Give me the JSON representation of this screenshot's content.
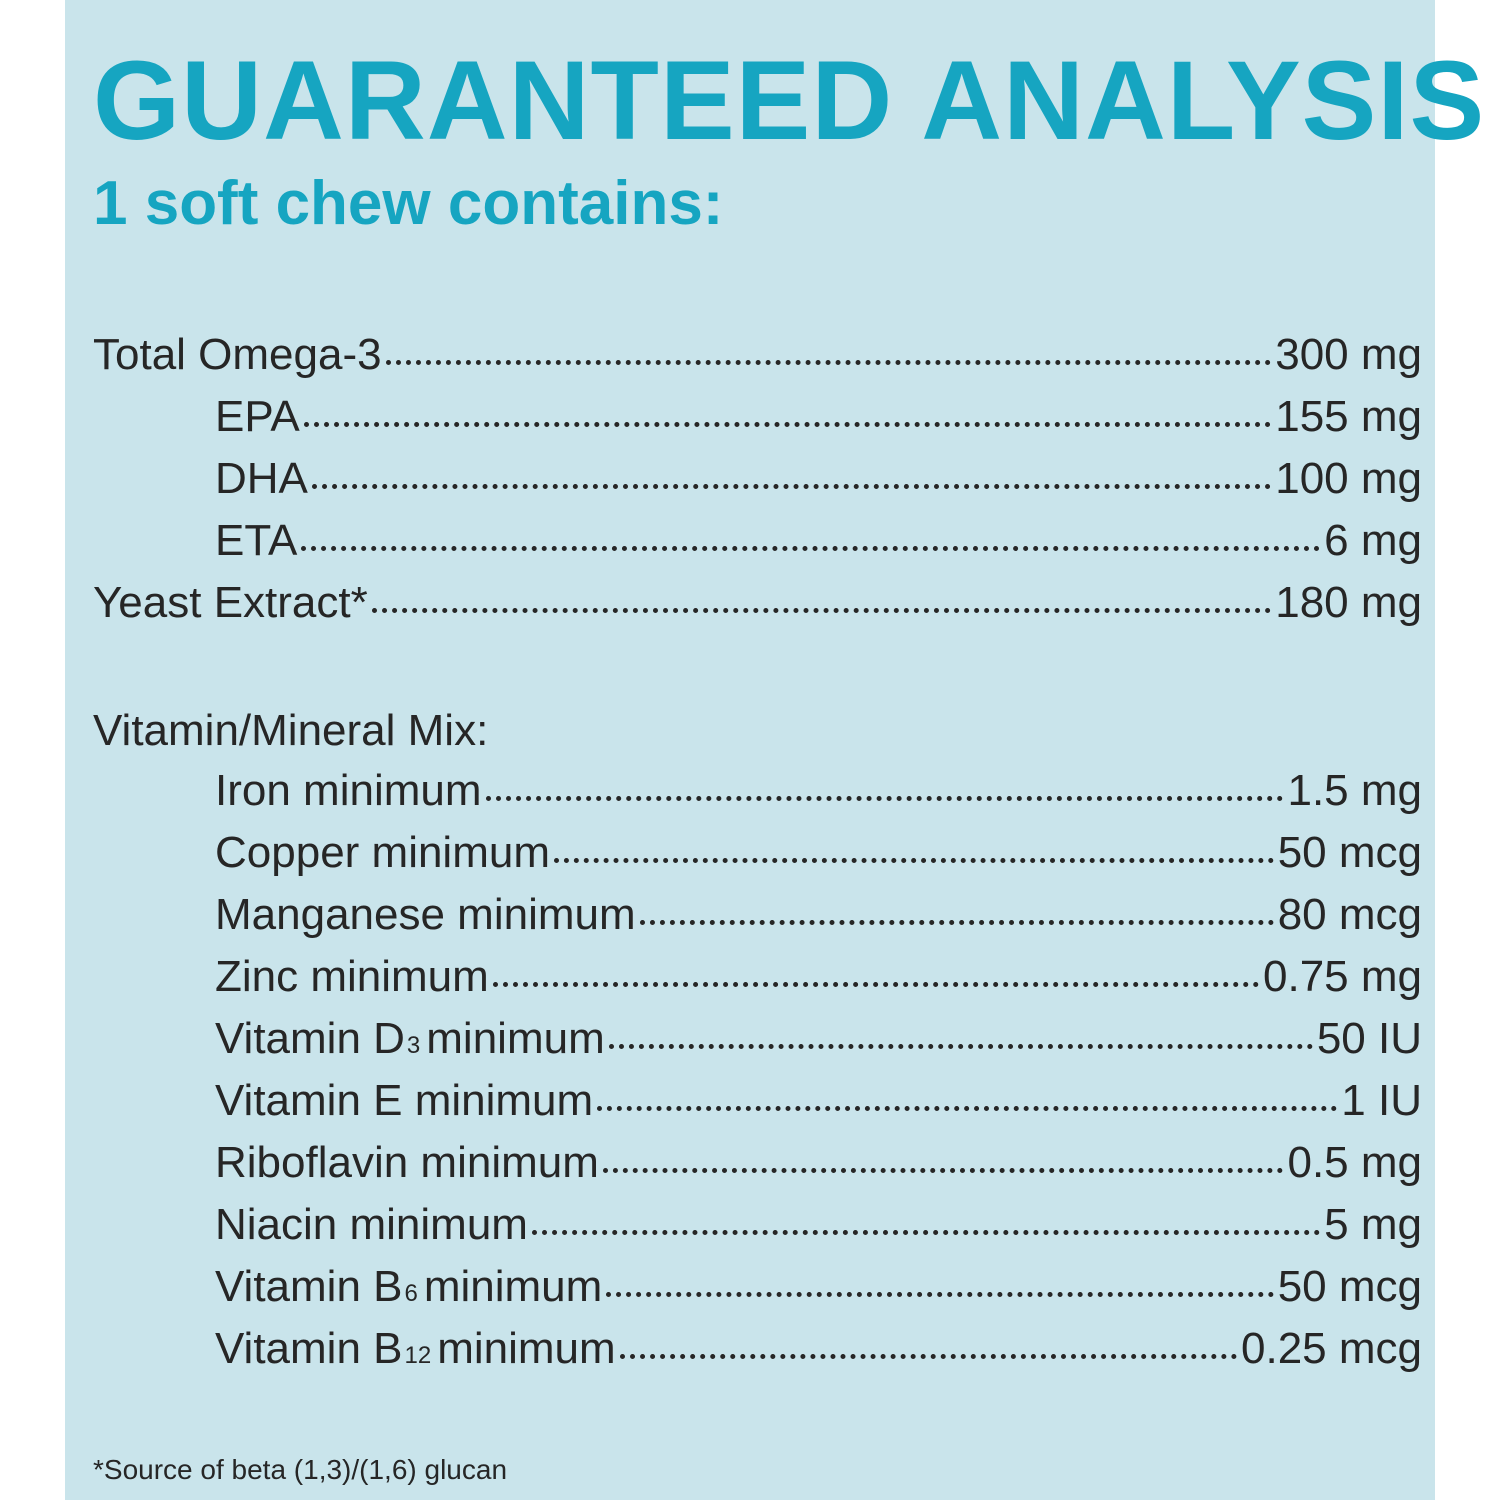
{
  "header": {
    "title": "GUARANTEED ANALYSIS",
    "subtitle": "1 soft chew contains:"
  },
  "nutrients": [
    {
      "name": "Total Omega-3",
      "amount": "300 mg",
      "indent": false
    },
    {
      "name": "EPA",
      "amount": "155 mg",
      "indent": true
    },
    {
      "name": "DHA",
      "amount": "100 mg",
      "indent": true
    },
    {
      "name": "ETA",
      "amount": "6 mg",
      "indent": true
    },
    {
      "name": "Yeast Extract*",
      "amount": "180 mg",
      "indent": false
    }
  ],
  "vitamin_mix": {
    "heading": "Vitamin/Mineral Mix:",
    "items": [
      {
        "name": "Iron minimum",
        "amount": "1.5 mg"
      },
      {
        "name": "Copper minimum",
        "amount": "50 mcg"
      },
      {
        "name": "Manganese minimum",
        "amount": "80 mcg"
      },
      {
        "name": "Zinc minimum",
        "amount": "0.75 mg"
      },
      {
        "name": "Vitamin D",
        "sub": "3",
        "rest": "minimum",
        "amount": "50 IU"
      },
      {
        "name": "Vitamin E minimum",
        "amount": "1 IU"
      },
      {
        "name": "Riboflavin minimum",
        "amount": "0.5 mg"
      },
      {
        "name": "Niacin minimum",
        "amount": "5 mg"
      },
      {
        "name": "Vitamin B",
        "sub": "6",
        "rest": "minimum",
        "amount": "50 mcg"
      },
      {
        "name": "Vitamin B",
        "sub": "12",
        "rest": "minimum",
        "amount": "0.25 mcg"
      }
    ]
  },
  "footnote": "*Source of beta (1,3)/(1,6) glucan"
}
